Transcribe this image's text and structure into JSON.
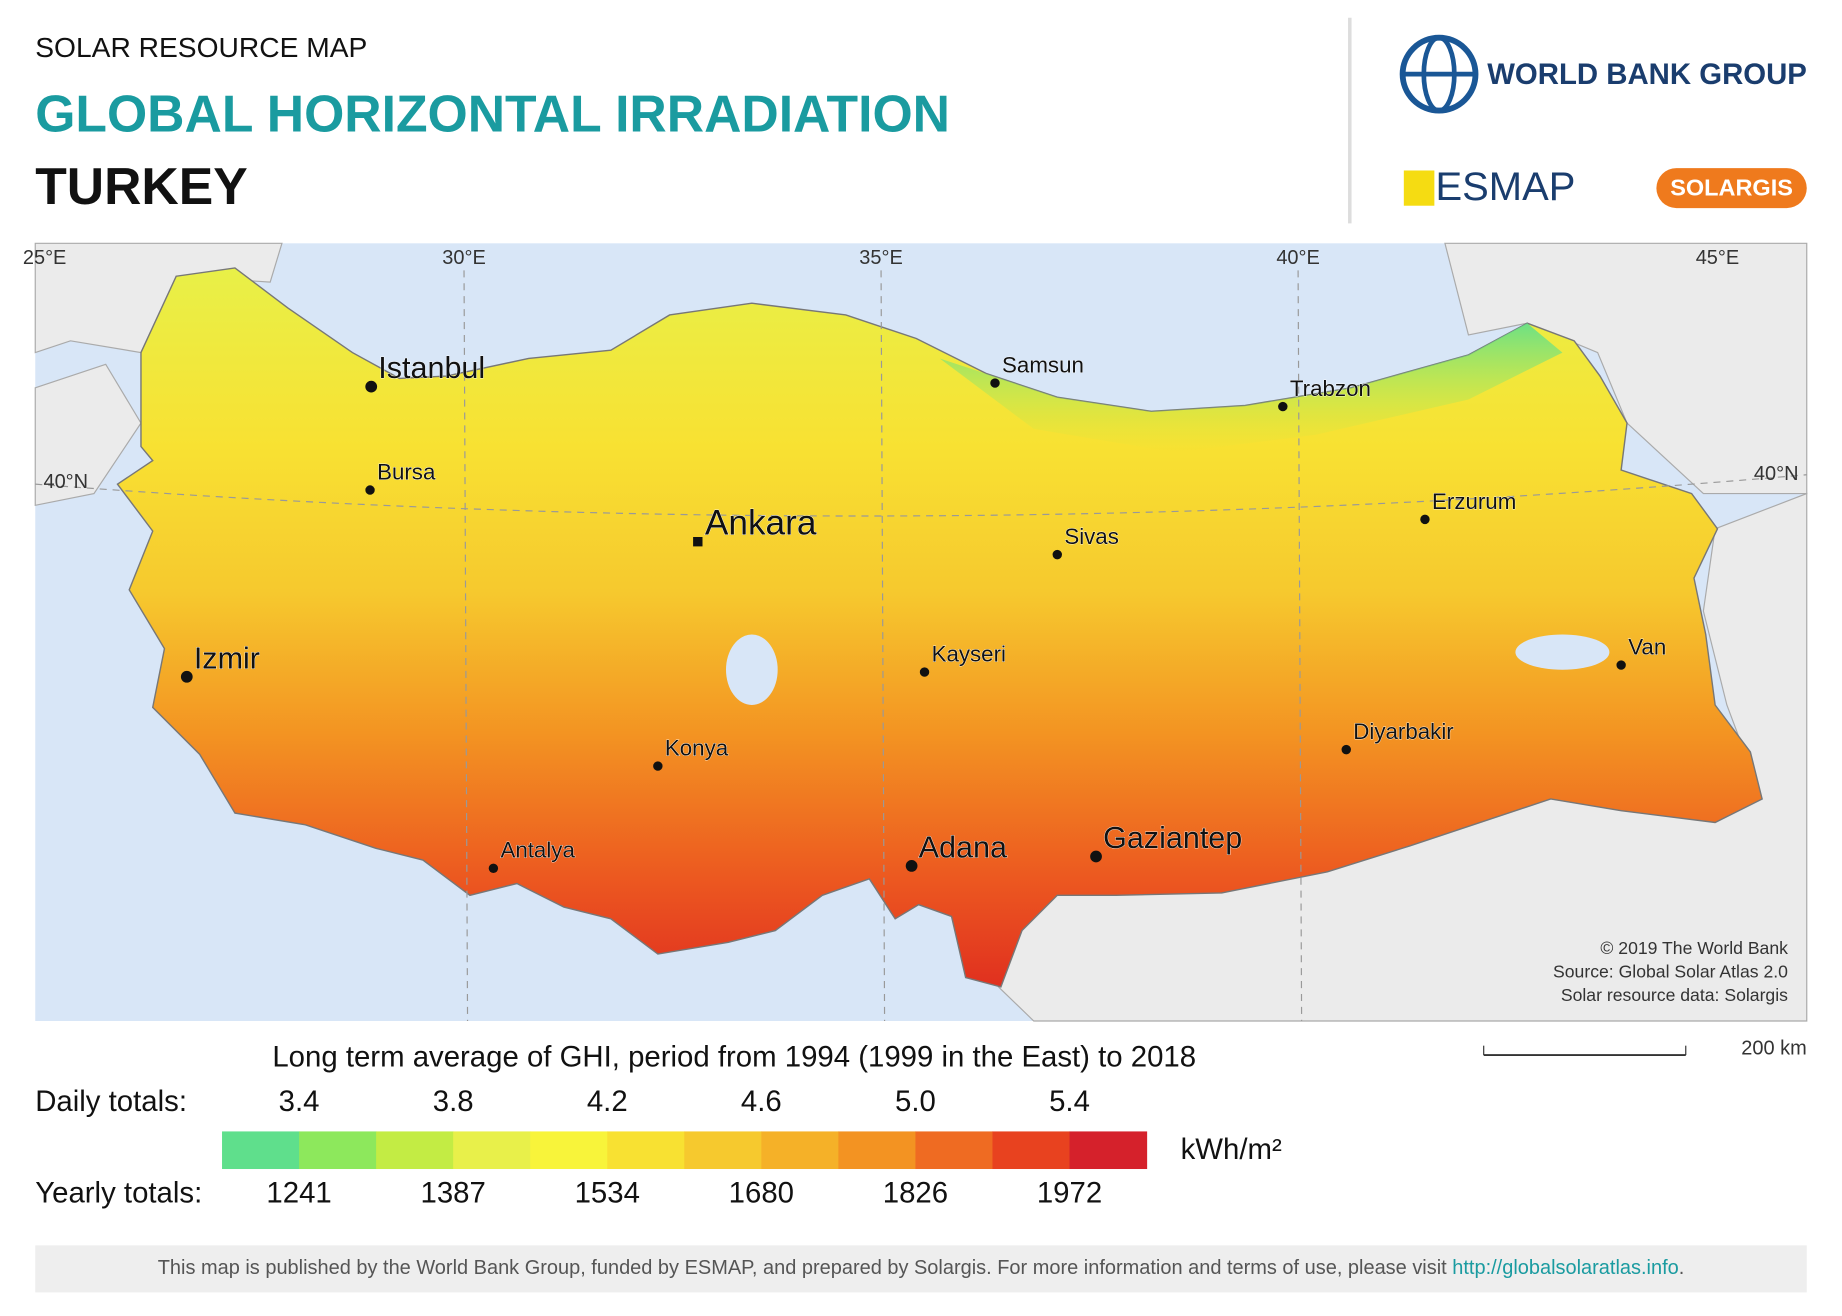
{
  "header": {
    "kicker": "SOLAR RESOURCE MAP",
    "title": "GLOBAL HORIZONTAL IRRADIATION",
    "country": "TURKEY"
  },
  "logos": {
    "world_bank": "WORLD BANK GROUP",
    "esmap": "ESMAP",
    "solargis": "SOLARGIS"
  },
  "map": {
    "longitudes": [
      "25°E",
      "30°E",
      "35°E",
      "40°E",
      "45°E"
    ],
    "latitudes": [
      "40°N",
      "40°N"
    ],
    "cities": [
      "Istanbul",
      "Bursa",
      "Ankara",
      "Izmir",
      "Samsun",
      "Trabzon",
      "Erzurum",
      "Sivas",
      "Kayseri",
      "Van",
      "Diyarbakir",
      "Konya",
      "Gaziantep",
      "Adana",
      "Antalya"
    ],
    "credits": [
      "© 2019 The World Bank",
      "Source: Global Solar Atlas 2.0",
      "Solar resource data: Solargis"
    ],
    "scale": "200 km"
  },
  "legend": {
    "title": "Long term average of GHI, period from 1994 (1999 in the East) to 2018",
    "daily_label": "Daily totals:",
    "daily": [
      3.4,
      3.8,
      4.2,
      4.6,
      {
        "value": 5,
        "label": "5.0"
      },
      5.4
    ],
    "yearly_label": "Yearly totals:",
    "yearly": [
      1241,
      1387,
      1534,
      1680,
      1826,
      1972
    ],
    "unit": "kWh/m²",
    "colors": [
      "#5fdf8c",
      "#8de85c",
      "#c3ec44",
      "#e8f04a",
      "#f8f43a",
      "#f8e132",
      "#f6c92e",
      "#f5b128",
      "#f39322",
      "#ef6b22",
      "#e8421f",
      "#d5212b"
    ]
  },
  "footer": {
    "text": "This map is published by the World Bank Group, funded by ESMAP, and prepared by Solargis. For more information and terms of use, please visit ",
    "link": "http://globalsolaratlas.info",
    "end": "."
  }
}
